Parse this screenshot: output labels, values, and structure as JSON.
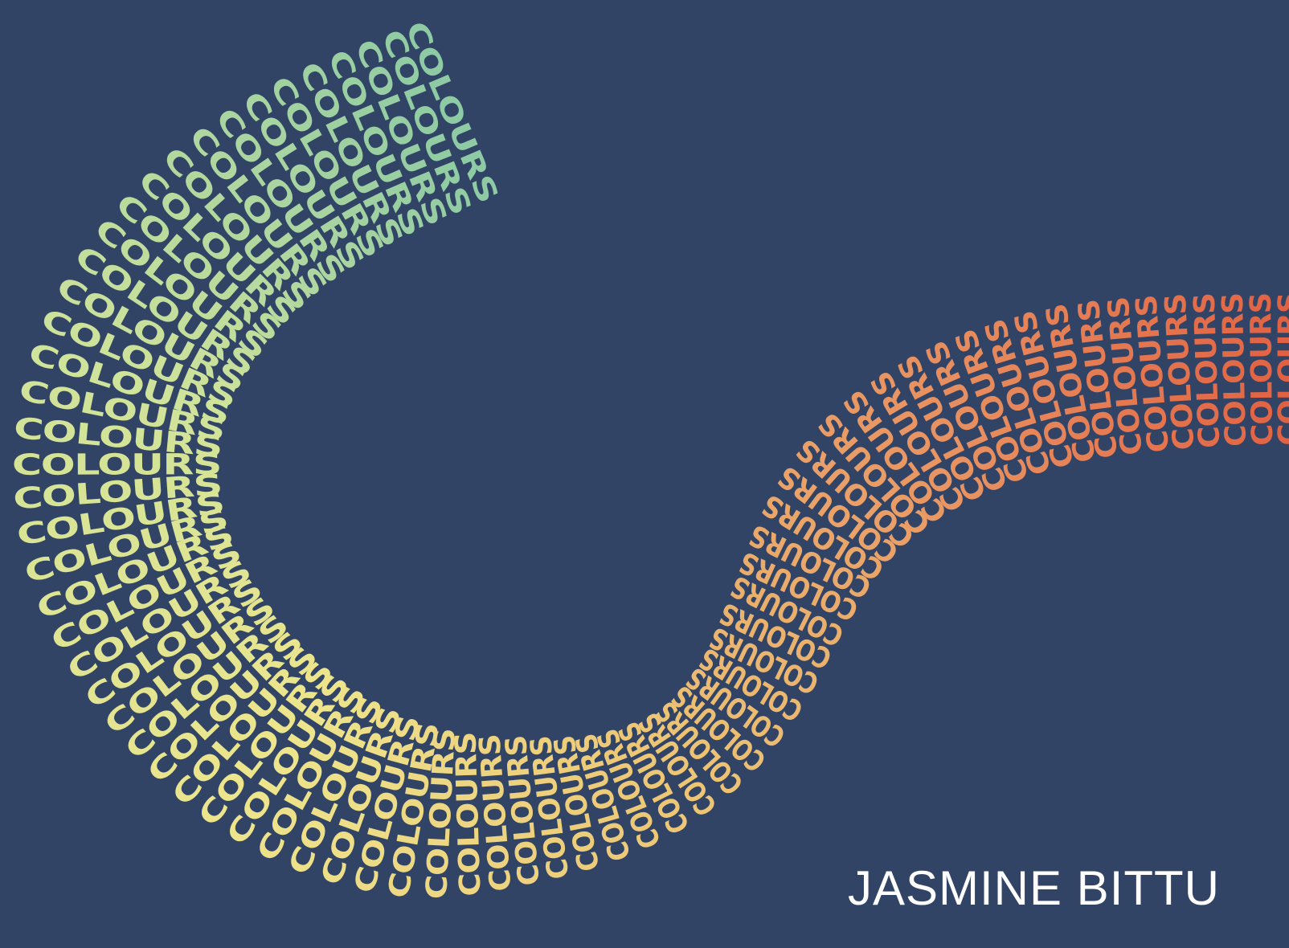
{
  "artwork": {
    "repeated_word": "COLOURS",
    "author": "JASMINE BITTU"
  },
  "colors": {
    "background": "#314466",
    "author_text": "#ffffff",
    "gradient_start": "#8ecaa4",
    "gradient_mid_1": "#cfe39a",
    "gradient_mid_2": "#ede58c",
    "gradient_mid_3": "#edc474",
    "gradient_mid_4": "#e89262",
    "gradient_end": "#e0583c"
  }
}
